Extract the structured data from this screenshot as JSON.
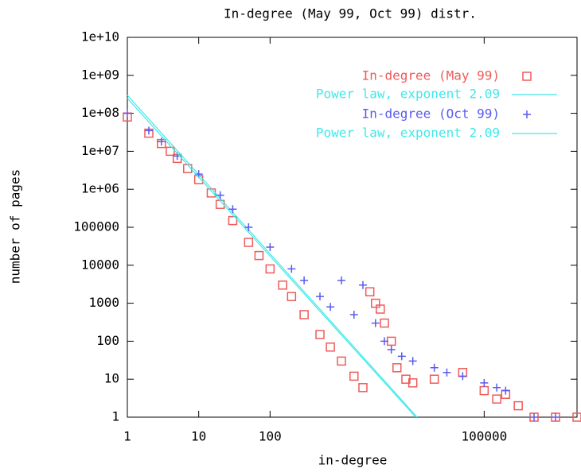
{
  "chart_data": {
    "type": "scatter",
    "title": "In-degree (May 99, Oct 99) distr.",
    "x_label": "in-degree",
    "y_label": "number of pages",
    "xscale": "log",
    "yscale": "log",
    "xlim": [
      1,
      2000000
    ],
    "ylim": [
      1,
      10000000000
    ],
    "xticks": [
      1,
      10,
      100,
      100000
    ],
    "yticks": [
      1,
      10,
      100,
      1000,
      10000,
      100000,
      {
        "value": 1000000,
        "label": "1e+06"
      },
      {
        "value": 10000000,
        "label": "1e+07"
      },
      {
        "value": 100000000,
        "label": "1e+08"
      },
      {
        "value": 1000000000,
        "label": "1e+09"
      },
      {
        "value": 10000000000,
        "label": "1e+10"
      }
    ],
    "legend": "upper right",
    "series": [
      {
        "name": "In-degree (May 99)",
        "color": "#f05a5a",
        "marker": "square",
        "x": [
          1,
          2,
          3,
          4,
          5,
          7,
          10,
          15,
          20,
          30,
          50,
          70,
          100,
          150,
          200,
          300,
          500,
          700,
          1000,
          1500,
          2000,
          2500,
          3000,
          3500,
          4000,
          5000,
          6000,
          8000,
          10000,
          20000,
          50000,
          100000,
          150000,
          200000,
          300000,
          500000,
          1000000,
          2000000
        ],
        "values": [
          80000000,
          30000000,
          16000000,
          10000000,
          6500000,
          3500000,
          1800000,
          800000,
          400000,
          150000,
          40000,
          18000,
          8000,
          3000,
          1500,
          500,
          150,
          70,
          30,
          12,
          6,
          2000,
          1000,
          700,
          300,
          100,
          20,
          10,
          8,
          10,
          15,
          5,
          3,
          4,
          2,
          1,
          1,
          1
        ]
      },
      {
        "name": "Power law, exponent 2.09",
        "color": "#40e8e8",
        "marker": "line",
        "x": [
          1,
          11500
        ],
        "values": [
          300000000,
          1
        ]
      },
      {
        "name": "In-degree (Oct 99)",
        "color": "#5a5af0",
        "marker": "plus",
        "x": [
          1,
          2,
          3,
          5,
          10,
          20,
          30,
          50,
          100,
          200,
          300,
          500,
          700,
          1000,
          1500,
          2000,
          3000,
          4000,
          5000,
          7000,
          10000,
          20000,
          30000,
          50000,
          100000,
          150000,
          200000,
          500000,
          1000000
        ],
        "values": [
          100000000,
          35000000,
          18000000,
          7500000,
          2500000,
          700000,
          300000,
          100000,
          30000,
          8000,
          4000,
          1500,
          800,
          4000,
          500,
          3000,
          300,
          100,
          60,
          40,
          30,
          20,
          15,
          12,
          8,
          6,
          5,
          1,
          1
        ]
      },
      {
        "name": "Power law, exponent 2.09",
        "color": "#40e8e8",
        "marker": "line",
        "x": [
          1,
          11000
        ],
        "values": [
          250000000,
          1
        ]
      }
    ]
  }
}
